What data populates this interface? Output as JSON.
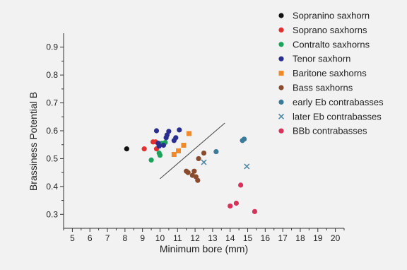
{
  "chart_data": {
    "type": "scatter",
    "xlabel": "Minimum bore (mm)",
    "ylabel": "Brassiness Potential B",
    "xlim": [
      4.5,
      20.5
    ],
    "ylim": [
      0.25,
      0.95
    ],
    "x_ticks": [
      5,
      6,
      7,
      8,
      9,
      10,
      11,
      12,
      13,
      14,
      15,
      16,
      17,
      18,
      19,
      20
    ],
    "y_ticks": [
      0.3,
      0.4,
      0.5,
      0.6,
      0.7,
      0.8,
      0.9
    ],
    "grid": false,
    "legend_placement": "top-right, outside plot",
    "series": [
      {
        "name": "Sopranino saxhorn",
        "color": "#111111",
        "marker": "circle",
        "points": [
          [
            8.1,
            0.535
          ]
        ]
      },
      {
        "name": "Soprano saxhorns",
        "color": "#e23030",
        "marker": "circle",
        "points": [
          [
            9.1,
            0.535
          ],
          [
            9.6,
            0.56
          ],
          [
            9.75,
            0.56
          ],
          [
            9.8,
            0.535
          ]
        ]
      },
      {
        "name": "Contralto saxhorns",
        "color": "#1aa35a",
        "marker": "circle",
        "points": [
          [
            9.5,
            0.495
          ],
          [
            9.95,
            0.52
          ],
          [
            10.0,
            0.512
          ],
          [
            10.1,
            0.555
          ],
          [
            10.3,
            0.558
          ]
        ]
      },
      {
        "name": "Tenor saxhorn",
        "color": "#2a2f8f",
        "marker": "circle",
        "points": [
          [
            9.8,
            0.6
          ],
          [
            9.9,
            0.555
          ],
          [
            9.95,
            0.545
          ],
          [
            10.2,
            0.548
          ],
          [
            10.35,
            0.575
          ],
          [
            10.4,
            0.585
          ],
          [
            10.5,
            0.598
          ],
          [
            10.8,
            0.565
          ],
          [
            10.9,
            0.575
          ],
          [
            11.1,
            0.603
          ]
        ]
      },
      {
        "name": "Baritone saxhorns",
        "color": "#ef8a2a",
        "marker": "square",
        "points": [
          [
            10.8,
            0.515
          ],
          [
            11.05,
            0.528
          ],
          [
            11.35,
            0.548
          ],
          [
            11.65,
            0.59
          ]
        ]
      },
      {
        "name": "Bass saxhorns",
        "color": "#8a4a2e",
        "marker": "circle",
        "points": [
          [
            11.5,
            0.455
          ],
          [
            11.6,
            0.45
          ],
          [
            11.85,
            0.44
          ],
          [
            11.95,
            0.455
          ],
          [
            12.05,
            0.435
          ],
          [
            12.15,
            0.422
          ],
          [
            12.2,
            0.5
          ],
          [
            12.5,
            0.52
          ]
        ]
      },
      {
        "name": "early Eb contrabasses",
        "color": "#3b7a9a",
        "marker": "circle",
        "points": [
          [
            13.2,
            0.525
          ],
          [
            14.7,
            0.565
          ],
          [
            14.8,
            0.57
          ]
        ]
      },
      {
        "name": "later Eb contrabasses",
        "color": "#4f88a8",
        "marker": "cross",
        "points": [
          [
            12.5,
            0.487
          ],
          [
            14.95,
            0.472
          ]
        ]
      },
      {
        "name": "BBb contrabasses",
        "color": "#d9325a",
        "marker": "circle",
        "points": [
          [
            14.0,
            0.33
          ],
          [
            14.35,
            0.34
          ],
          [
            14.6,
            0.405
          ],
          [
            15.4,
            0.31
          ]
        ]
      }
    ],
    "annotation_line": {
      "from": [
        10.0,
        0.428
      ],
      "to": [
        13.7,
        0.628
      ]
    }
  }
}
